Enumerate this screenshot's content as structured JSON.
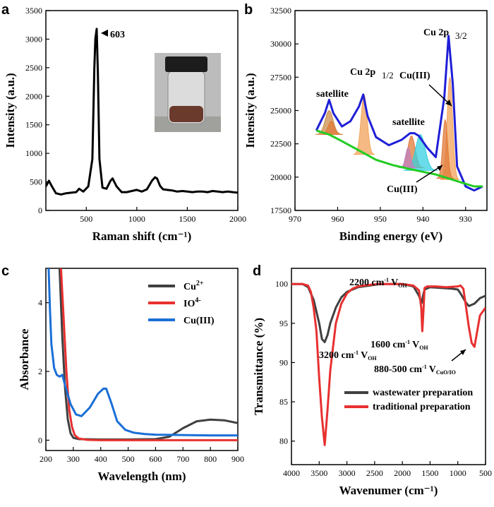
{
  "figure": {
    "panels": [
      {
        "id": "a",
        "chart_data": {
          "type": "line",
          "xlabel": "Raman shift (cm⁻¹)",
          "ylabel": "Intensity (a.u.)",
          "xlim": [
            100,
            2000
          ],
          "ylim": [
            0,
            3500
          ],
          "xticks": [
            500,
            1000,
            1500,
            2000
          ],
          "yticks": [
            0,
            500,
            1000,
            1500,
            2000,
            2500,
            3000,
            3500
          ],
          "series": [
            {
              "color": "#000000",
              "x": [
                100,
                130,
                160,
                200,
                250,
                300,
                350,
                400,
                430,
                470,
                520,
                560,
                580,
                590,
                603,
                615,
                630,
                660,
                700,
                740,
                760,
                800,
                850,
                900,
                950,
                1000,
                1050,
                1100,
                1150,
                1180,
                1200,
                1230,
                1260,
                1300,
                1350,
                1400,
                1450,
                1500,
                1550,
                1600,
                1650,
                1700,
                1750,
                1800,
                1850,
                1900,
                1950,
                2000
              ],
              "y": [
                420,
                520,
                420,
                300,
                280,
                300,
                310,
                320,
                380,
                330,
                420,
                900,
                2500,
                3000,
                3180,
                2400,
                900,
                400,
                380,
                520,
                560,
                420,
                320,
                320,
                340,
                360,
                330,
                370,
                520,
                580,
                560,
                430,
                370,
                360,
                350,
                330,
                340,
                330,
                320,
                330,
                330,
                320,
                340,
                330,
                320,
                330,
                320,
                310
              ]
            }
          ],
          "annotations": [
            {
              "text": "603",
              "x": 603,
              "y": 3180
            }
          ]
        },
        "inset_photo": "vial-photo"
      },
      {
        "id": "b",
        "chart_data": {
          "type": "line",
          "xlabel": "Binding energy (eV)",
          "ylabel": "Intensity (a.u.)",
          "xlim": [
            970,
            925
          ],
          "ylim": [
            17500,
            32500
          ],
          "xticks": [
            970,
            960,
            950,
            940,
            930
          ],
          "yticks": [
            17500,
            20000,
            22500,
            25000,
            27500,
            30000,
            32500
          ],
          "series": [
            {
              "color": "#1f1fd6",
              "x": [
                965,
                963,
                962,
                961,
                959,
                957,
                955,
                954,
                953,
                951,
                948,
                945,
                943,
                942,
                941,
                939,
                937,
                935,
                934,
                933,
                932,
                930,
                928,
                926
              ],
              "y": [
                23500,
                24800,
                25800,
                24800,
                23800,
                24200,
                25300,
                26200,
                24600,
                23000,
                22400,
                22800,
                23300,
                23300,
                23100,
                22200,
                21500,
                26000,
                30600,
                27000,
                20800,
                19300,
                19000,
                19300
              ]
            },
            {
              "color": "#22cc22",
              "x": [
                965,
                962,
                959,
                955,
                951,
                947,
                943,
                940,
                937,
                934,
                931,
                928,
                926
              ],
              "y": [
                23500,
                23200,
                22700,
                22000,
                21300,
                20900,
                20600,
                20400,
                20200,
                19900,
                19600,
                19300,
                19300
              ]
            }
          ],
          "labels": [
            "satellite",
            "Cu 2p",
            "1/2",
            "satellite",
            "Cu 2p",
            "3/2",
            "Cu(III)",
            "Cu(III)"
          ]
        }
      },
      {
        "id": "c",
        "chart_data": {
          "type": "line",
          "xlabel": "Wavelength (nm)",
          "ylabel": "Absorbance",
          "xlim": [
            200,
            900
          ],
          "ylim": [
            -0.3,
            5
          ],
          "xticks": [
            200,
            300,
            400,
            500,
            600,
            700,
            800,
            900
          ],
          "yticks": [
            0,
            2,
            4
          ],
          "series": [
            {
              "name": "Cu",
              "sup": "2+",
              "color": "#404040",
              "x": [
                250,
                260,
                270,
                280,
                290,
                300,
                320,
                400,
                500,
                600,
                650,
                700,
                750,
                800,
                850,
                900
              ],
              "y": [
                5,
                3,
                1.5,
                0.6,
                0.2,
                0.07,
                0.03,
                0.02,
                0.02,
                0.03,
                0.1,
                0.35,
                0.55,
                0.6,
                0.58,
                0.5
              ]
            },
            {
              "name": "IO",
              "sup": "4",
              "sup2": "-",
              "color": "#e83030",
              "x": [
                255,
                265,
                275,
                285,
                295,
                305,
                320,
                350,
                400,
                500,
                600,
                700,
                800,
                900
              ],
              "y": [
                5,
                3.5,
                2,
                0.9,
                0.4,
                0.15,
                0.05,
                0.01,
                0.0,
                0.0,
                0.0,
                0.0,
                0.0,
                0.0
              ]
            },
            {
              "name": "Cu(III)",
              "color": "#1a6fd6",
              "x": [
                210,
                215,
                220,
                230,
                240,
                250,
                260,
                270,
                290,
                310,
                330,
                360,
                390,
                410,
                420,
                440,
                460,
                490,
                520,
                560,
                600,
                700,
                800,
                900
              ],
              "y": [
                5,
                3.8,
                2.8,
                2.1,
                1.9,
                1.85,
                1.9,
                1.6,
                1.05,
                0.75,
                0.7,
                0.95,
                1.35,
                1.5,
                1.5,
                1.05,
                0.55,
                0.3,
                0.22,
                0.18,
                0.16,
                0.15,
                0.14,
                0.14
              ]
            }
          ]
        }
      },
      {
        "id": "d",
        "chart_data": {
          "type": "line",
          "xlabel": "Wavenumer (cm⁻¹)",
          "ylabel": "Transmittance (%)",
          "xlim": [
            4000,
            500
          ],
          "ylim": [
            77,
            102
          ],
          "xticks": [
            4000,
            3500,
            3000,
            2500,
            2000,
            1500,
            1000,
            500
          ],
          "yticks": [
            80,
            85,
            90,
            95,
            100
          ],
          "series": [
            {
              "name": "wastewater preparation",
              "color": "#404040",
              "x": [
                4000,
                3800,
                3700,
                3600,
                3500,
                3450,
                3400,
                3350,
                3300,
                3200,
                3100,
                3000,
                2800,
                2600,
                2400,
                2200,
                2000,
                1800,
                1700,
                1650,
                1630,
                1600,
                1500,
                1300,
                1100,
                1000,
                950,
                900,
                850,
                800,
                700,
                600,
                500
              ],
              "y": [
                100,
                100,
                99.6,
                98,
                95,
                93,
                92.6,
                93.5,
                95,
                97,
                98.3,
                99,
                99.6,
                99.8,
                100,
                100,
                100,
                99.7,
                98.5,
                97.6,
                98.4,
                99.3,
                99.6,
                99.5,
                99.4,
                99.3,
                98.8,
                98.2,
                97.6,
                97.2,
                97.5,
                98.2,
                98.5
              ]
            },
            {
              "name": "traditional preparation",
              "color": "#e83030",
              "x": [
                4000,
                3800,
                3700,
                3650,
                3600,
                3550,
                3500,
                3450,
                3400,
                3350,
                3300,
                3200,
                3100,
                3000,
                2900,
                2800,
                2600,
                2400,
                2200,
                2000,
                1800,
                1700,
                1660,
                1640,
                1620,
                1600,
                1550,
                1400,
                1200,
                1000,
                950,
                900,
                850,
                800,
                750,
                700,
                650,
                600,
                550,
                500
              ],
              "y": [
                100,
                100,
                99.8,
                99,
                97,
                94,
                88,
                83,
                79.5,
                84,
                89,
                95,
                97.5,
                98.8,
                99.4,
                99.7,
                99.9,
                100,
                100,
                100,
                99.8,
                99.2,
                97,
                94,
                96.5,
                99.5,
                99.7,
                99.7,
                99.6,
                99.7,
                99.8,
                99.4,
                97,
                94.5,
                92.5,
                92,
                94,
                96,
                96.5,
                97
              ]
            }
          ],
          "labels": [
            "2200 cm",
            "-1",
            "V",
            "OH",
            "3200 cm",
            "-1",
            "V",
            "OH",
            "1600 cm",
            "-1",
            "V",
            "OH",
            "880-500 cm",
            "-1",
            "V",
            "CuO/IO"
          ]
        }
      }
    ]
  }
}
